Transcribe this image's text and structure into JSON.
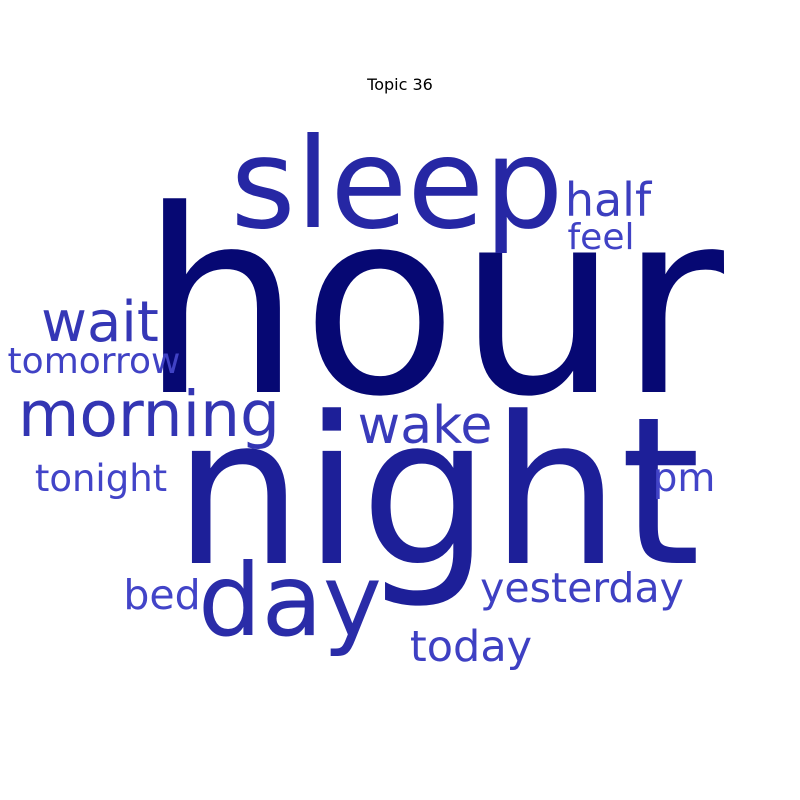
{
  "title": "Topic 36",
  "colors": {
    "background": "#ffffff",
    "title": "#000000"
  },
  "words": [
    {
      "id": "hour",
      "text": "hour",
      "color": "#060873"
    },
    {
      "id": "night",
      "text": "night",
      "color": "#1d1f98"
    },
    {
      "id": "sleep",
      "text": "sleep",
      "color": "#2627a4"
    },
    {
      "id": "day",
      "text": "day",
      "color": "#2a2ca8"
    },
    {
      "id": "morning",
      "text": "morning",
      "color": "#3335b3"
    },
    {
      "id": "wait",
      "text": "wait",
      "color": "#3537b6"
    },
    {
      "id": "wake",
      "text": "wake",
      "color": "#393bbb"
    },
    {
      "id": "half",
      "text": "half",
      "color": "#3c3ebf"
    },
    {
      "id": "today",
      "text": "today",
      "color": "#3e40c3"
    },
    {
      "id": "yesterday",
      "text": "yesterday",
      "color": "#3e40c3"
    },
    {
      "id": "feel",
      "text": "feel",
      "color": "#4042c5"
    },
    {
      "id": "tomorrow",
      "text": "tomorrow",
      "color": "#4042c5"
    },
    {
      "id": "tonight",
      "text": "tonight",
      "color": "#4244c8"
    },
    {
      "id": "pm",
      "text": "pm",
      "color": "#4244c8"
    },
    {
      "id": "bed",
      "text": "bed",
      "color": "#4244c8"
    }
  ]
}
